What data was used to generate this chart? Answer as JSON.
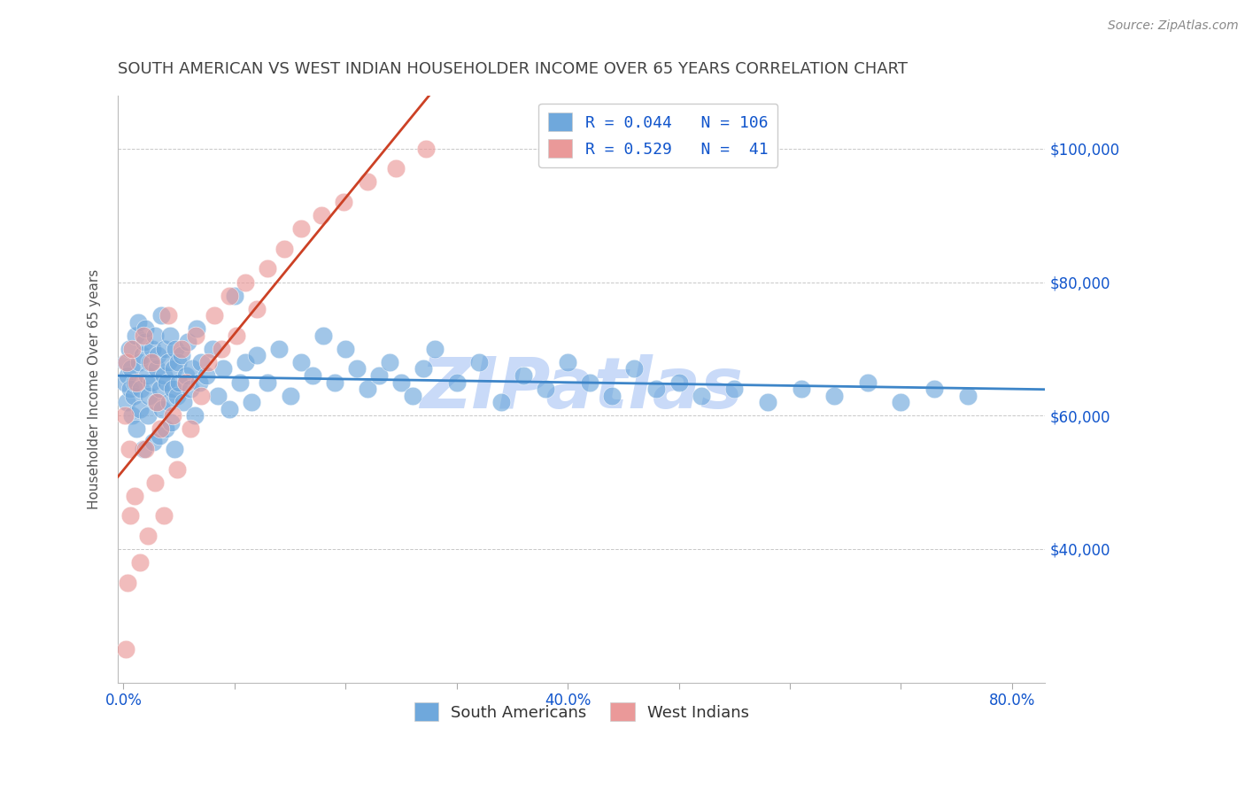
{
  "title": "SOUTH AMERICAN VS WEST INDIAN HOUSEHOLDER INCOME OVER 65 YEARS CORRELATION CHART",
  "source": "Source: ZipAtlas.com",
  "ylabel": "Householder Income Over 65 years",
  "xlabel": "",
  "xlim": [
    -0.005,
    0.83
  ],
  "ylim": [
    20000,
    108000
  ],
  "xticks": [
    0.0,
    0.1,
    0.2,
    0.3,
    0.4,
    0.5,
    0.6,
    0.7,
    0.8
  ],
  "xticklabels_sparse": [
    "0.0%",
    "",
    "",
    "",
    "40.0%",
    "",
    "",
    "",
    "80.0%"
  ],
  "yticks": [
    40000,
    60000,
    80000,
    100000
  ],
  "yticklabels": [
    "$40,000",
    "$60,000",
    "$80,000",
    "$100,000"
  ],
  "south_american_R": 0.044,
  "south_american_N": 106,
  "west_indian_R": 0.529,
  "west_indian_N": 41,
  "blue_color": "#6fa8dc",
  "pink_color": "#ea9999",
  "blue_line_color": "#3d85c8",
  "pink_line_color": "#cc4125",
  "legend_text_color": "#1155cc",
  "title_color": "#434343",
  "axis_color": "#1155cc",
  "watermark": "ZIPatlas",
  "watermark_color": "#c9daf8",
  "grid_color": "#b0b0b0",
  "background_color": "#ffffff",
  "south_american_x": [
    0.001,
    0.002,
    0.003,
    0.004,
    0.005,
    0.006,
    0.007,
    0.008,
    0.009,
    0.01,
    0.011,
    0.012,
    0.013,
    0.014,
    0.015,
    0.016,
    0.017,
    0.018,
    0.019,
    0.02,
    0.021,
    0.022,
    0.023,
    0.024,
    0.025,
    0.026,
    0.027,
    0.028,
    0.029,
    0.03,
    0.031,
    0.032,
    0.033,
    0.034,
    0.035,
    0.036,
    0.037,
    0.038,
    0.039,
    0.04,
    0.041,
    0.042,
    0.043,
    0.044,
    0.045,
    0.046,
    0.047,
    0.048,
    0.049,
    0.05,
    0.052,
    0.054,
    0.056,
    0.058,
    0.06,
    0.062,
    0.064,
    0.066,
    0.068,
    0.07,
    0.075,
    0.08,
    0.085,
    0.09,
    0.095,
    0.1,
    0.105,
    0.11,
    0.115,
    0.12,
    0.13,
    0.14,
    0.15,
    0.16,
    0.17,
    0.18,
    0.19,
    0.2,
    0.21,
    0.22,
    0.23,
    0.24,
    0.25,
    0.26,
    0.27,
    0.28,
    0.3,
    0.32,
    0.34,
    0.36,
    0.38,
    0.4,
    0.42,
    0.44,
    0.46,
    0.48,
    0.5,
    0.52,
    0.55,
    0.58,
    0.61,
    0.64,
    0.67,
    0.7,
    0.73,
    0.76
  ],
  "south_american_y": [
    65000,
    68000,
    62000,
    66000,
    70000,
    64000,
    67000,
    60000,
    63000,
    65000,
    72000,
    58000,
    74000,
    68000,
    61000,
    64000,
    69000,
    55000,
    71000,
    73000,
    66000,
    60000,
    63000,
    68000,
    65000,
    70000,
    56000,
    72000,
    62000,
    67000,
    69000,
    57000,
    64000,
    75000,
    61000,
    66000,
    70000,
    58000,
    65000,
    68000,
    62000,
    72000,
    59000,
    64000,
    67000,
    55000,
    70000,
    63000,
    68000,
    65000,
    69000,
    62000,
    66000,
    71000,
    64000,
    67000,
    60000,
    73000,
    65000,
    68000,
    66000,
    70000,
    63000,
    67000,
    61000,
    78000,
    65000,
    68000,
    62000,
    69000,
    65000,
    70000,
    63000,
    68000,
    66000,
    72000,
    65000,
    70000,
    67000,
    64000,
    66000,
    68000,
    65000,
    63000,
    67000,
    70000,
    65000,
    68000,
    62000,
    66000,
    64000,
    68000,
    65000,
    63000,
    67000,
    64000,
    65000,
    63000,
    64000,
    62000,
    64000,
    63000,
    65000,
    62000,
    64000,
    63000
  ],
  "west_indian_x": [
    0.001,
    0.002,
    0.003,
    0.004,
    0.005,
    0.006,
    0.008,
    0.01,
    0.012,
    0.015,
    0.018,
    0.02,
    0.022,
    0.025,
    0.028,
    0.03,
    0.033,
    0.036,
    0.04,
    0.044,
    0.048,
    0.052,
    0.056,
    0.06,
    0.065,
    0.07,
    0.076,
    0.082,
    0.088,
    0.095,
    0.102,
    0.11,
    0.12,
    0.13,
    0.145,
    0.16,
    0.178,
    0.198,
    0.22,
    0.245,
    0.272
  ],
  "west_indian_y": [
    60000,
    25000,
    68000,
    35000,
    55000,
    45000,
    70000,
    48000,
    65000,
    38000,
    72000,
    55000,
    42000,
    68000,
    50000,
    62000,
    58000,
    45000,
    75000,
    60000,
    52000,
    70000,
    65000,
    58000,
    72000,
    63000,
    68000,
    75000,
    70000,
    78000,
    72000,
    80000,
    76000,
    82000,
    85000,
    88000,
    90000,
    92000,
    95000,
    97000,
    100000
  ]
}
